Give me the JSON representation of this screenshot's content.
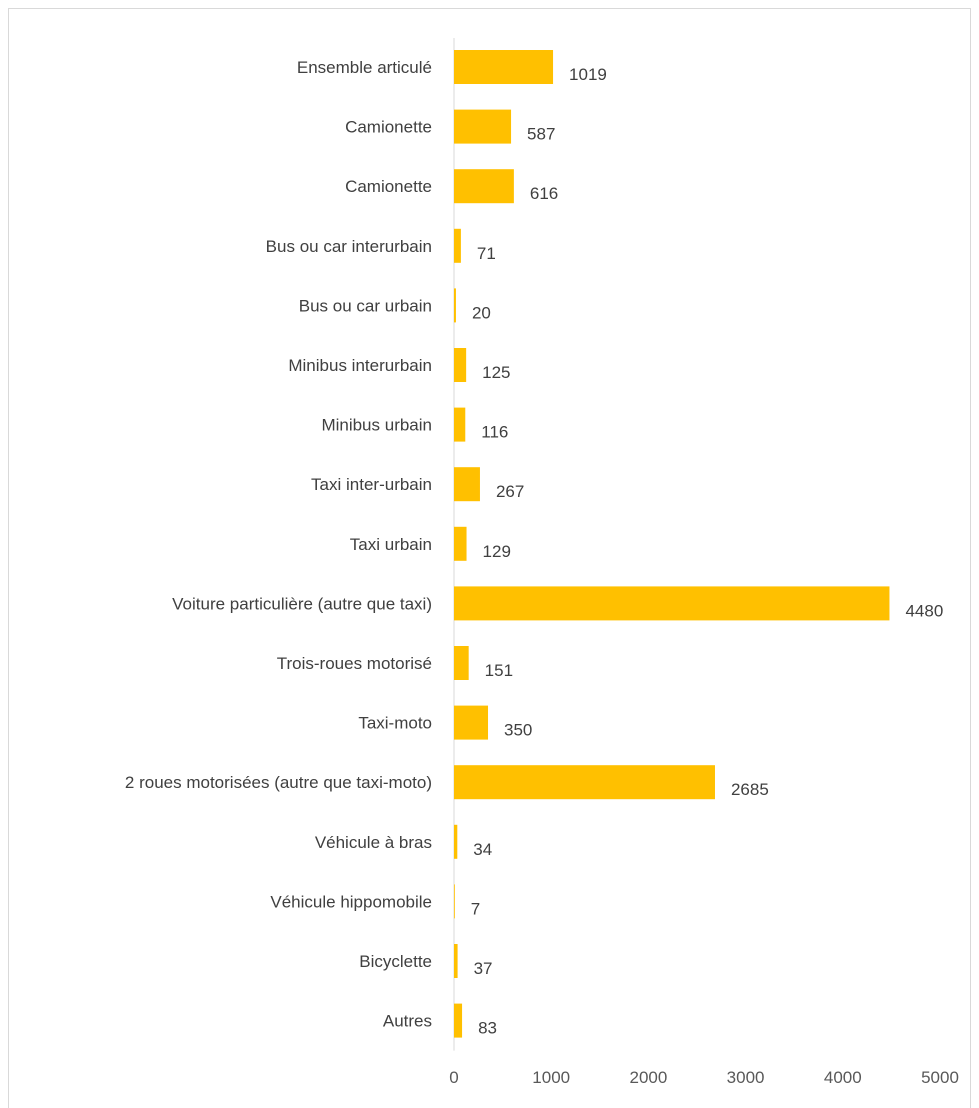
{
  "chart_data": {
    "type": "bar",
    "orientation": "horizontal",
    "title": "",
    "xlabel": "",
    "ylabel": "",
    "categories": [
      "Ensemble articulé",
      "Camionette",
      "Camionette",
      "Bus ou car interurbain",
      "Bus ou car urbain",
      "Minibus interurbain",
      "Minibus urbain",
      "Taxi inter-urbain",
      "Taxi urbain",
      "Voiture particulière (autre que taxi)",
      "Trois-roues motorisé",
      "Taxi-moto",
      "2 roues motorisées (autre que taxi-moto)",
      "Véhicule à bras",
      "Véhicule hippomobile",
      "Bicyclette",
      "Autres"
    ],
    "values": [
      1019,
      587,
      616,
      71,
      20,
      125,
      116,
      267,
      129,
      4480,
      151,
      350,
      2685,
      34,
      7,
      37,
      83
    ],
    "xlim": [
      0,
      5000
    ],
    "xticks": [
      "0",
      "1000",
      "2000",
      "3000",
      "4000",
      "5000"
    ],
    "bar_color": "#FFC000",
    "grid": false,
    "legend": "none",
    "data_labels": true
  }
}
